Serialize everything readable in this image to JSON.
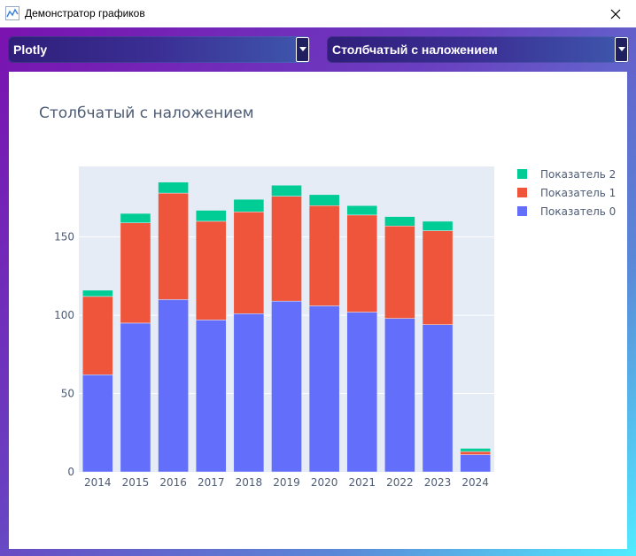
{
  "window": {
    "title": "Демонстратор графиков",
    "icon": "chart-app-icon",
    "close_icon": "close-icon"
  },
  "controls": {
    "library_select": {
      "value": "Plotly"
    },
    "chart_type_select": {
      "value": "Столбчатый с наложением"
    }
  },
  "chart_data": {
    "type": "bar",
    "mode": "stacked",
    "title": "Столбчатый с наложением",
    "categories": [
      "2014",
      "2015",
      "2016",
      "2017",
      "2018",
      "2019",
      "2020",
      "2021",
      "2022",
      "2023",
      "2024"
    ],
    "series": [
      {
        "name": "Показатель 0",
        "color": "#636efa",
        "values": [
          62,
          95,
          110,
          97,
          101,
          109,
          106,
          102,
          98,
          94,
          11
        ]
      },
      {
        "name": "Показатель 1",
        "color": "#ef553b",
        "values": [
          50,
          64,
          68,
          63,
          65,
          67,
          64,
          62,
          59,
          60,
          2
        ]
      },
      {
        "name": "Показатель 2",
        "color": "#00cc96",
        "values": [
          4,
          6,
          7,
          7,
          8,
          7,
          7,
          6,
          6,
          6,
          2
        ]
      }
    ],
    "legend": [
      "Показатель 2",
      "Показатель 1",
      "Показатель 0"
    ],
    "legend_placement": "top-right",
    "yticks": [
      0,
      50,
      100,
      150
    ],
    "ylim": [
      0,
      195
    ],
    "grid": true,
    "plot_background": "#e5ecf6"
  }
}
